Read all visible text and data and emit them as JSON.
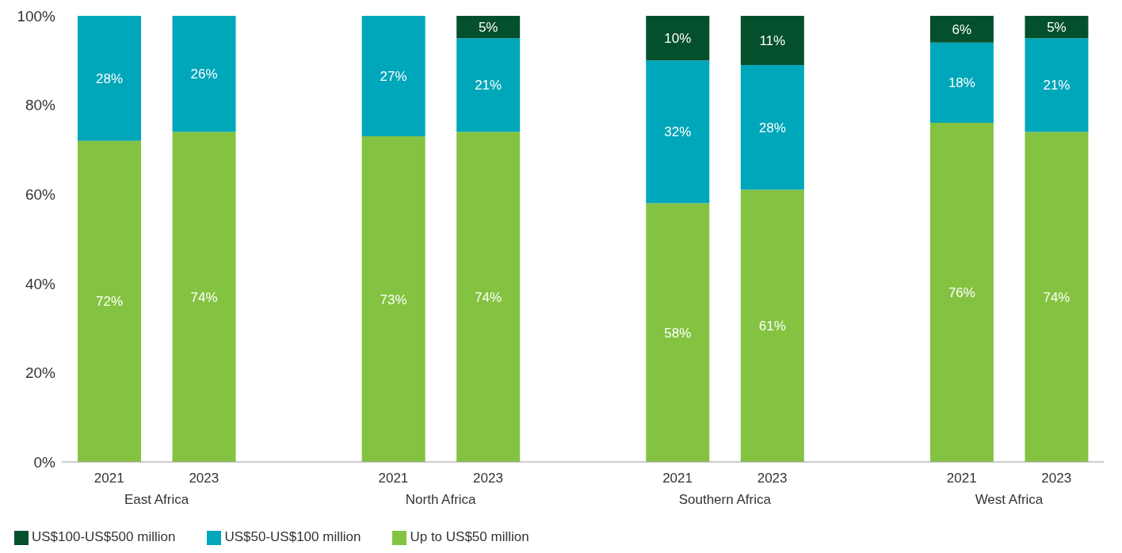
{
  "chart_data": {
    "type": "bar",
    "stacked": true,
    "categories": [
      "2021",
      "2023",
      null,
      "2021",
      "2023",
      null,
      "2021",
      "2023",
      null,
      "2021",
      "2023"
    ],
    "series": [
      {
        "name": "Up to US$50 million",
        "color": "#84c341",
        "values": [
          72,
          74,
          null,
          73,
          74,
          null,
          58,
          61,
          null,
          76,
          74
        ],
        "value_labels": [
          "72%",
          "74%",
          null,
          "73%",
          "74%",
          null,
          "58%",
          "61%",
          null,
          "76%",
          "74%"
        ]
      },
      {
        "name": "US$50-US$100 million",
        "color": "#00a6b9",
        "values": [
          28,
          26,
          null,
          27,
          21,
          null,
          32,
          28,
          null,
          18,
          21
        ],
        "value_labels": [
          "28%",
          "26%",
          null,
          "27%",
          "21%",
          null,
          "32%",
          "28%",
          null,
          "18%",
          "21%"
        ]
      },
      {
        "name": "US$100-US$500 million",
        "color": "#05502c",
        "values": [
          null,
          null,
          null,
          null,
          5,
          null,
          10,
          11,
          null,
          6,
          5
        ],
        "value_labels": [
          null,
          null,
          null,
          null,
          "5%",
          null,
          "10%",
          "11%",
          null,
          "6%",
          "5%"
        ]
      }
    ],
    "ylim": [
      0,
      100
    ],
    "yticks": [
      {
        "value": 0,
        "label": "0%"
      },
      {
        "value": 20,
        "label": "20%"
      },
      {
        "value": 40,
        "label": "40%"
      },
      {
        "value": 60,
        "label": "60%"
      },
      {
        "value": 80,
        "label": "80%"
      },
      {
        "value": 100,
        "label": "100%"
      }
    ],
    "annotations": [
      "East Africa",
      "North Africa",
      "Southern Africa",
      "West Africa"
    ],
    "grid": false,
    "legend": "bottom left"
  }
}
